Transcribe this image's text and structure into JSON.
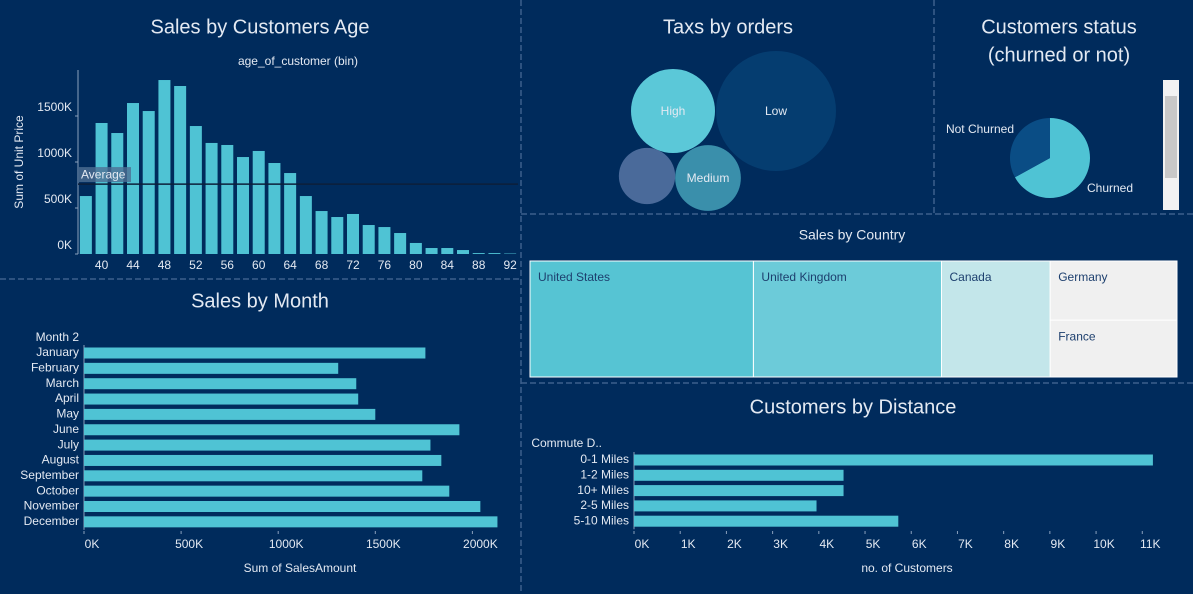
{
  "chart_data": [
    {
      "type": "bar",
      "title": "Sales by Customers Age",
      "subtitle": "age_of_customer (bin)",
      "y_label": "Sum of Unit Price",
      "x": [
        38,
        40,
        42,
        44,
        46,
        48,
        50,
        52,
        54,
        56,
        58,
        60,
        62,
        64,
        66,
        68,
        70,
        72,
        74,
        76,
        78,
        80,
        82,
        84,
        86,
        88,
        90,
        92
      ],
      "values": [
        630000,
        1424000,
        1315000,
        1641000,
        1554000,
        1891000,
        1826000,
        1391000,
        1207000,
        1185000,
        1054000,
        1120000,
        989000,
        880000,
        630000,
        467000,
        402000,
        435000,
        315000,
        293000,
        228000,
        120000,
        65000,
        65000,
        43000,
        10000,
        10000,
        5000
      ],
      "xlim": [
        37,
        93
      ],
      "xticks": [
        40,
        44,
        48,
        52,
        56,
        60,
        64,
        68,
        72,
        76,
        80,
        84,
        88,
        92
      ],
      "ylim": [
        0,
        2000000
      ],
      "yticks": [
        {
          "value": 0,
          "label": "0K"
        },
        {
          "value": 500000,
          "label": "500K"
        },
        {
          "value": 1000000,
          "label": "1000K"
        },
        {
          "value": 1500000,
          "label": "1500K"
        }
      ],
      "color": "#4fc3d4",
      "reference_line": {
        "label": "Average",
        "value": 760000
      }
    },
    {
      "type": "bubble",
      "title": "Taxs by orders",
      "categories": [
        "High",
        "Low",
        "Medium",
        null
      ],
      "values": [
        49,
        100,
        30,
        22
      ],
      "colors": [
        "#5bc8d8",
        "#053d70",
        "#3a8fab",
        "#4a6a9a"
      ]
    },
    {
      "type": "pie",
      "title": [
        "Customers status",
        "(churned or not)"
      ],
      "categories": [
        "Churned",
        "Not Churned"
      ],
      "values": [
        67,
        33
      ],
      "colors": [
        "#4fc3d4",
        "#0a4d85"
      ]
    },
    {
      "type": "treemap",
      "title": "Sales by Country",
      "categories": [
        "United States",
        "United Kingdom",
        "Canada",
        "Germany",
        "France"
      ],
      "values": [
        25.9,
        21.8,
        12.6,
        7.5,
        7.2
      ],
      "colors": [
        "#56c4d3",
        "#6ccbd9",
        "#c3e6ea",
        "#f0f0f0",
        "#f0f0f0"
      ]
    },
    {
      "type": "hbar",
      "title": "Sales by Month",
      "header": "Month 2",
      "x_label": "Sum of SalesAmount",
      "categories": [
        "January",
        "February",
        "March",
        "April",
        "May",
        "June",
        "July",
        "August",
        "September",
        "October",
        "November",
        "December"
      ],
      "values": [
        1758000,
        1309000,
        1402000,
        1412000,
        1500000,
        1933000,
        1784000,
        1840000,
        1742000,
        1881000,
        2041000,
        2129000
      ],
      "xlim": [
        0,
        2240000
      ],
      "xticks": [
        {
          "value": 0,
          "label": "0K"
        },
        {
          "value": 500000,
          "label": "500K"
        },
        {
          "value": 1000000,
          "label": "1000K"
        },
        {
          "value": 1500000,
          "label": "1500K"
        },
        {
          "value": 2000000,
          "label": "2000K"
        }
      ],
      "color": "#4fc3d4"
    },
    {
      "type": "hbar",
      "title": "Customers by Distance",
      "header": "Commute D..",
      "x_label": "no. of  Customers",
      "categories": [
        "0-1 Miles",
        "1-2 Miles",
        "10+ Miles",
        "2-5 Miles",
        "5-10 Miles"
      ],
      "values": [
        11230,
        4535,
        4535,
        3950,
        5720
      ],
      "xlim": [
        0,
        11600
      ],
      "xticks": [
        {
          "value": 0,
          "label": "0K"
        },
        {
          "value": 1000,
          "label": "1K"
        },
        {
          "value": 2000,
          "label": "2K"
        },
        {
          "value": 3000,
          "label": "3K"
        },
        {
          "value": 4000,
          "label": "4K"
        },
        {
          "value": 5000,
          "label": "5K"
        },
        {
          "value": 6000,
          "label": "6K"
        },
        {
          "value": 7000,
          "label": "7K"
        },
        {
          "value": 8000,
          "label": "8K"
        },
        {
          "value": 9000,
          "label": "9K"
        },
        {
          "value": 10000,
          "label": "10K"
        },
        {
          "value": 11000,
          "label": "11K"
        }
      ],
      "color": "#4fc3d4"
    }
  ]
}
